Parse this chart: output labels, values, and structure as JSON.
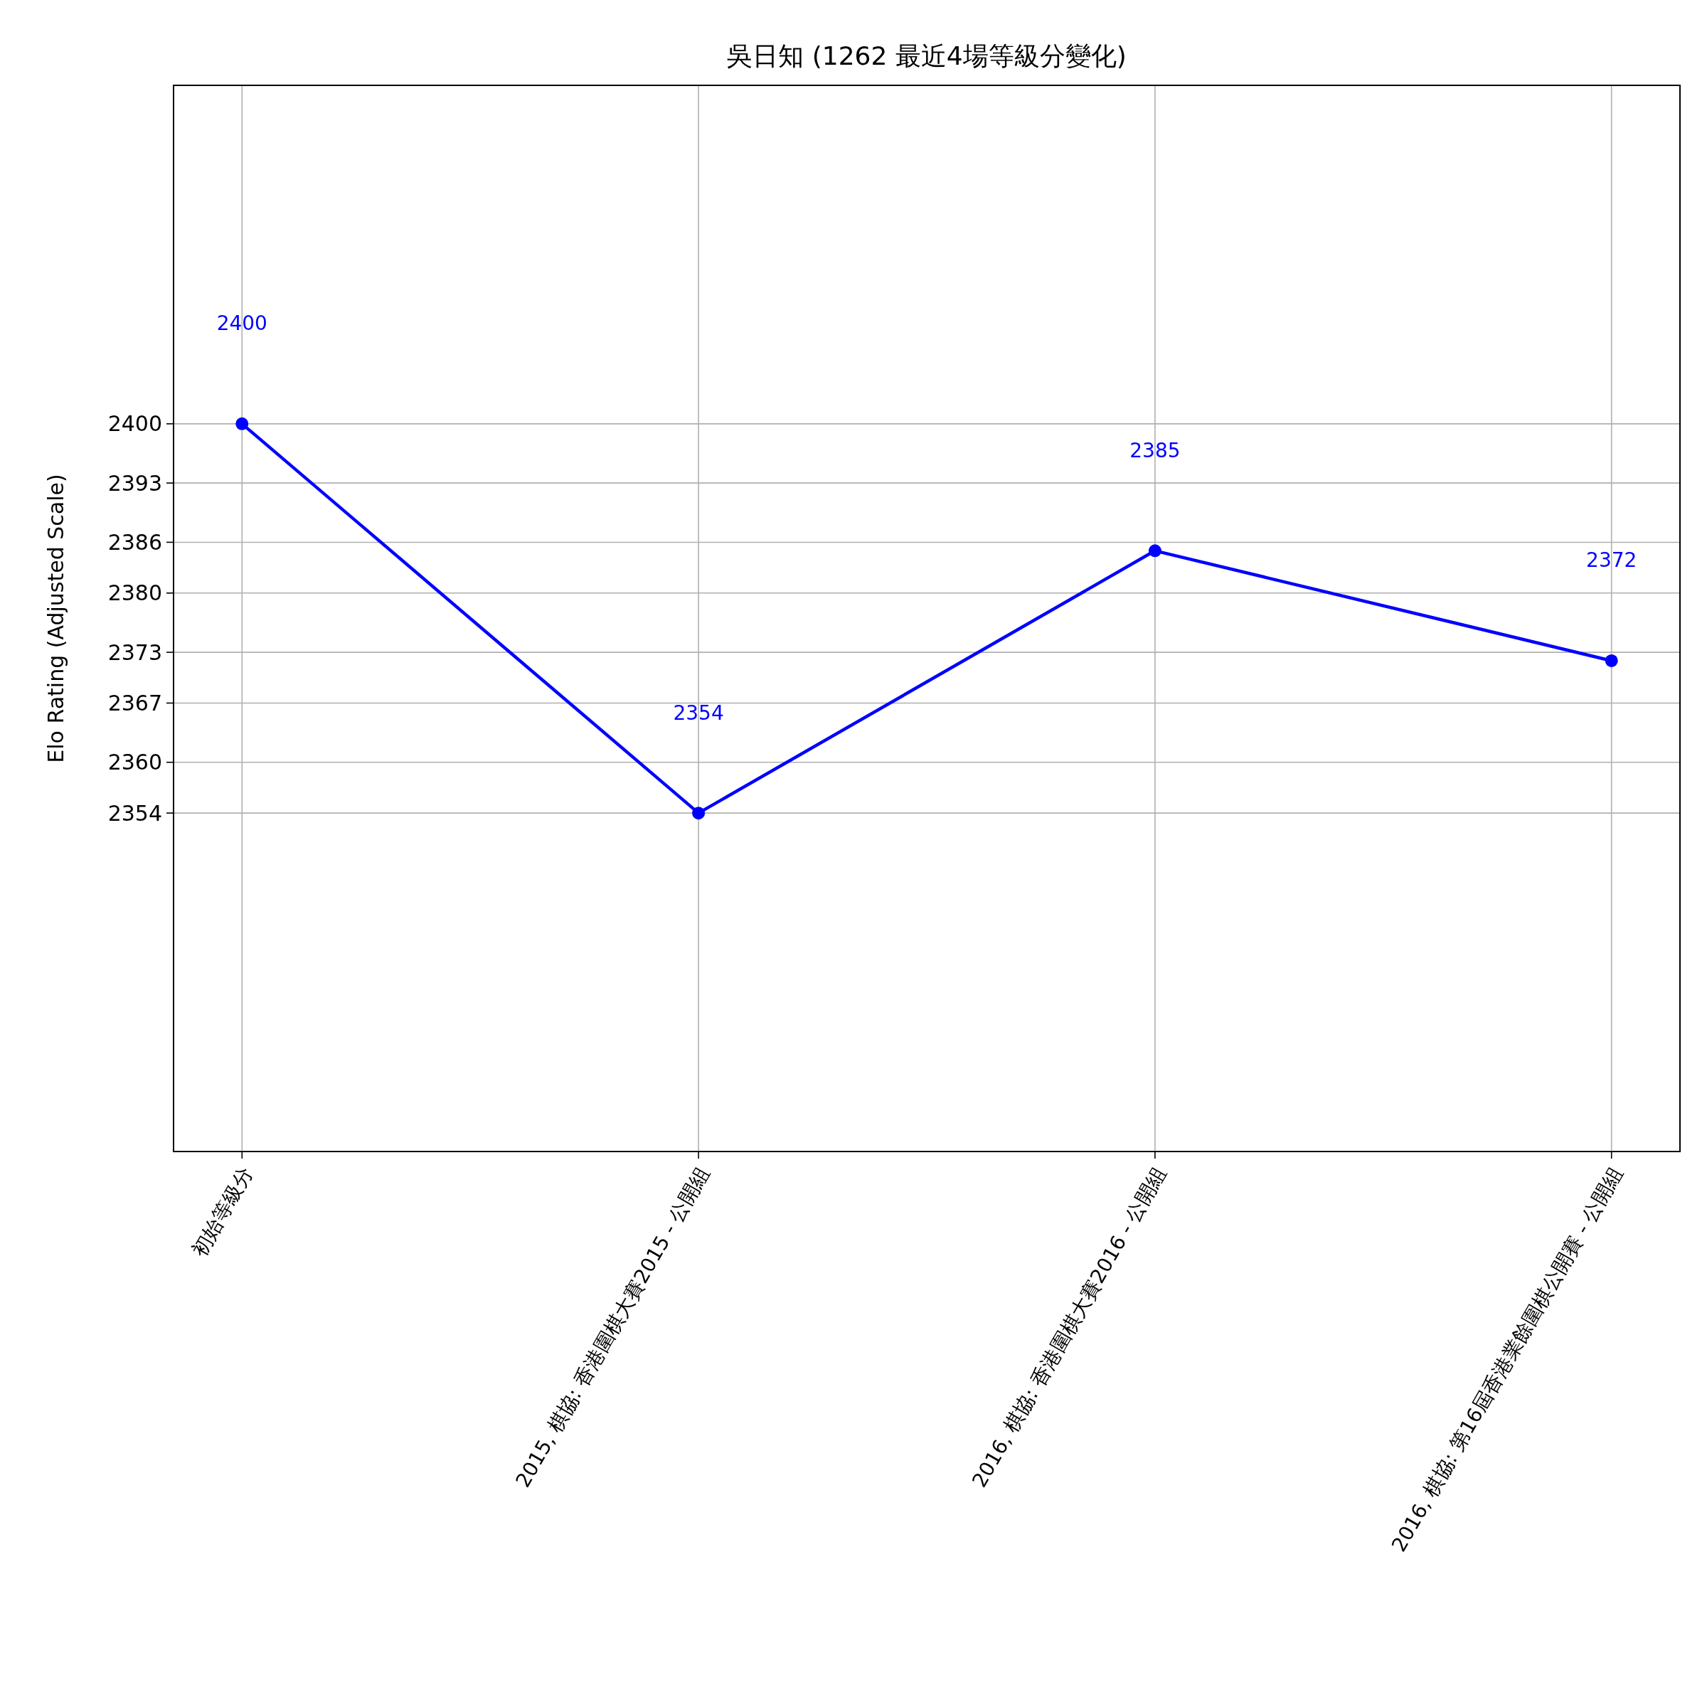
{
  "chart_data": {
    "type": "line",
    "title": "吳日知 (1262 最近4場等級分變化)",
    "ylabel": "Elo Rating (Adjusted Scale)",
    "categories": [
      "初始等級分",
      "2015, 棋協: 香港圍棋大賽2015 - 公開組",
      "2016, 棋協: 香港圍棋大賽2016 - 公開組",
      "2016, 棋協: 第16屆香港業餘圍棋公開賽 - 公開組"
    ],
    "series": [
      {
        "color": "#0000ff",
        "values": [
          2400,
          2354,
          2385,
          2372
        ]
      }
    ],
    "ylim": [
      2314,
      2440
    ],
    "yticks": [
      2354,
      2360,
      2367,
      2373,
      2380,
      2386,
      2393,
      2400
    ],
    "annotations": [
      "2400",
      "2354",
      "2385",
      "2372"
    ],
    "grid": true,
    "marker": "circle",
    "line_style": "solid"
  }
}
